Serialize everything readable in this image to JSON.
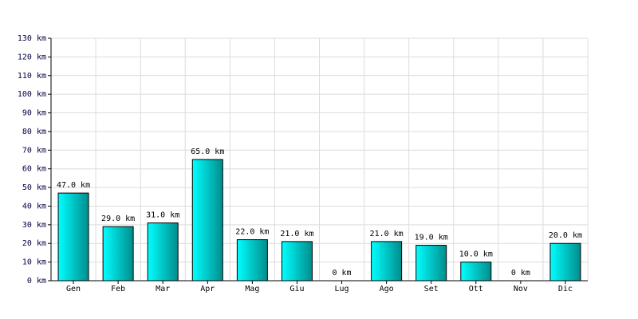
{
  "chart_data": {
    "type": "bar",
    "categories": [
      "Gen",
      "Feb",
      "Mar",
      "Apr",
      "Mag",
      "Giu",
      "Lug",
      "Ago",
      "Set",
      "Ott",
      "Nov",
      "Dic"
    ],
    "values": [
      47,
      29,
      31,
      65,
      22,
      21,
      0,
      21,
      19,
      10,
      0,
      20
    ],
    "value_labels": [
      "47.0 km",
      "29.0 km",
      "31.0 km",
      "65.0 km",
      "22.0 km",
      "21.0 km",
      "0 km",
      "21.0 km",
      "19.0 km",
      "10.0 km",
      "0 km",
      "20.0 km"
    ],
    "color": "#00c8c8",
    "ylim": [
      0,
      130
    ],
    "yticks": [
      {
        "value": 0,
        "label": "0 km"
      },
      {
        "value": 10,
        "label": "10 km"
      },
      {
        "value": 20,
        "label": "20 km"
      },
      {
        "value": 30,
        "label": "30 km"
      },
      {
        "value": 40,
        "label": "40 km"
      },
      {
        "value": 50,
        "label": "50 km"
      },
      {
        "value": 60,
        "label": "60 km"
      },
      {
        "value": 70,
        "label": "70 km"
      },
      {
        "value": 80,
        "label": "80 km"
      },
      {
        "value": 90,
        "label": "90 km"
      },
      {
        "value": 100,
        "label": "100 km"
      },
      {
        "value": 110,
        "label": "110 km"
      },
      {
        "value": 120,
        "label": "120 km"
      },
      {
        "value": 130,
        "label": "130 km"
      }
    ],
    "grid": true
  }
}
